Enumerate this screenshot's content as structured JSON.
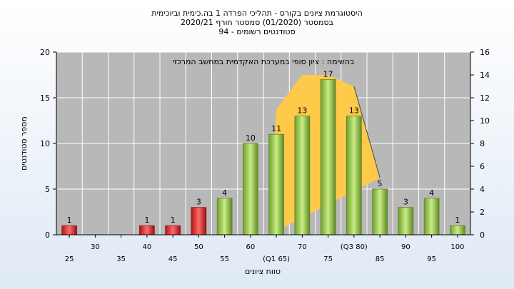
{
  "chart_data": {
    "type": "bar",
    "title_lines": [
      "היסטוגרמת ציונים בקורס - תהליכי הפרדה 1 בה.כימית וביוכימית",
      "בסמסטר   (01/2020)  סמסטר חורף  2020/21",
      "סטודנטים רשומים - 94"
    ],
    "annotation": "בהשימה : ציון סופי במערכת האקדמית במחשב המרכזי",
    "xlabel": "טווח ציונים",
    "ylabel": "מספר סטודנטים",
    "ylim": [
      0,
      20
    ],
    "yticks": [
      0,
      5,
      10,
      15,
      20
    ],
    "y2lim": [
      0,
      16
    ],
    "y2ticks": [
      0,
      2,
      4,
      6,
      8,
      10,
      12,
      14,
      16
    ],
    "categories": [
      "25",
      "30",
      "35",
      "40",
      "45",
      "50",
      "55",
      "60",
      "(Q1 65)",
      "70",
      "75",
      "(Q3 80)",
      "85",
      "90",
      "95",
      "100"
    ],
    "values": [
      1,
      0,
      0,
      1,
      1,
      3,
      4,
      10,
      11,
      13,
      17,
      13,
      5,
      3,
      4,
      1
    ],
    "value_labels": [
      "1",
      "",
      "",
      "1",
      "1",
      "3",
      "4",
      "10",
      "11",
      "13",
      "17",
      "13",
      "5",
      "3",
      "4",
      "1"
    ],
    "fail_threshold": 55,
    "colors": {
      "fail": "#dd2222",
      "pass": "#88c040",
      "iqr": "#ffc94a",
      "plot_bg": "#b8b8b8",
      "grid": "#ffffff"
    },
    "iqr_area": {
      "x": [
        "(Q1 65)",
        "(Q1 65)",
        "70",
        "75",
        "(Q3 80)",
        "85"
      ],
      "y": [
        0,
        11,
        14,
        14,
        13,
        5
      ]
    },
    "grid": true
  }
}
